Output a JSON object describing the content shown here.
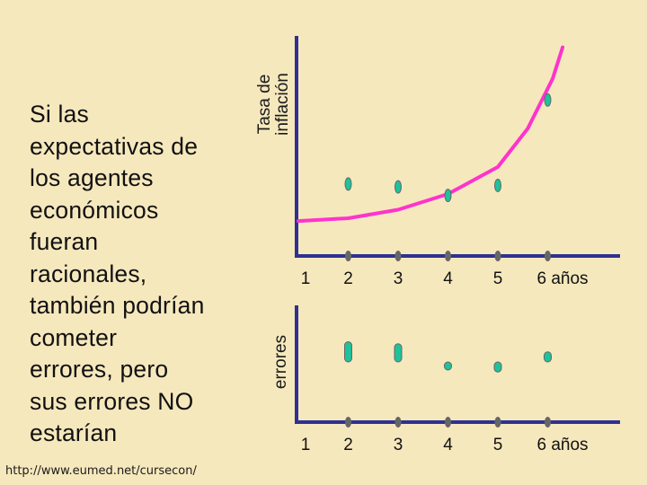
{
  "text_block": "Si las\nexpectativas de\nlos agentes\neconómicos\nfueran\nracionales,\ntambién podrían\ncometer\nerrores, pero\nsus errores NO\nestarían",
  "footer_url": "http://www.eumed.net/cursecon/",
  "colors": {
    "background": "#f6e8bd",
    "axis": "#2e3192",
    "curve": "#ff33cc",
    "point_fill": "#1ec29b",
    "tick": "#666666"
  },
  "chart_data": [
    {
      "type": "scatter",
      "title": "",
      "ylabel": "Tasa de\ninflación",
      "xlabel": "años",
      "categories": [
        "1",
        "2",
        "3",
        "4",
        "5",
        "6 años"
      ],
      "x": [
        2,
        3,
        4,
        5,
        6
      ],
      "values": [
        3.6,
        3.4,
        2.8,
        3.5,
        9.5
      ],
      "curve": [
        [
          1,
          1.0
        ],
        [
          2,
          1.2
        ],
        [
          3,
          1.8
        ],
        [
          4,
          2.9
        ],
        [
          5,
          4.8
        ],
        [
          5.6,
          7.5
        ],
        [
          6.1,
          11.0
        ],
        [
          6.3,
          13.2
        ]
      ],
      "ylim": [
        0,
        14
      ],
      "xlim": [
        1,
        7
      ],
      "grid": false
    },
    {
      "type": "scatter",
      "title": "",
      "ylabel": "errores",
      "xlabel": "años",
      "categories": [
        "1",
        "2",
        "3",
        "4",
        "5",
        "6 años"
      ],
      "x": [
        2,
        3,
        4,
        5,
        6
      ],
      "values": [
        1.0,
        0.9,
        -0.4,
        -0.5,
        0.5
      ],
      "ylim": [
        -2,
        2
      ],
      "xlim": [
        1,
        7
      ],
      "grid": false
    }
  ]
}
